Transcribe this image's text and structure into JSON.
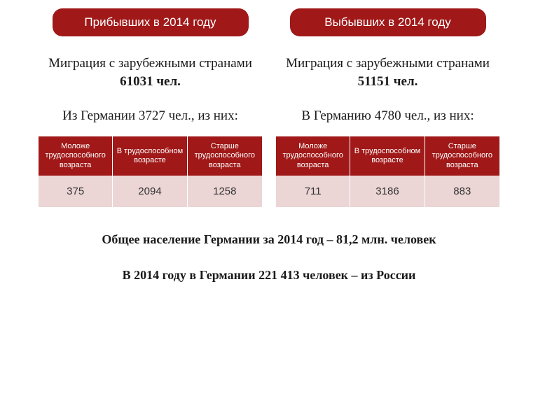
{
  "colors": {
    "accent": "#a01818",
    "cell_bg": "#ecd5d5",
    "text": "#1a1a1a",
    "white": "#ffffff"
  },
  "left": {
    "header": "Прибывших в 2014 году",
    "migration_prefix": "Миграция с зарубежными странами ",
    "migration_value": "61031 чел.",
    "country_line": "Из Германии 3727 чел., из них:",
    "table": {
      "headers": [
        "Моложе трудоспособного возраста",
        "В трудоспособном возрасте",
        "Старше трудоспособного возраста"
      ],
      "values": [
        "375",
        "2094",
        "1258"
      ]
    }
  },
  "right": {
    "header": "Выбывших в 2014 году",
    "migration_prefix": "Миграция с зарубежными странами ",
    "migration_value": "51151 чел.",
    "country_line": "В Германию 4780 чел., из них:",
    "table": {
      "headers": [
        "Моложе трудоспособного возраста",
        "В трудоспособном возрасте",
        "Старше трудоспособного возраста"
      ],
      "values": [
        "711",
        "3186",
        "883"
      ]
    }
  },
  "bottom": {
    "line1": "Общее население Германии за 2014 год – 81,2 млн. человек",
    "line2": "В 2014 году в Германии 221 413 человек – из России"
  }
}
